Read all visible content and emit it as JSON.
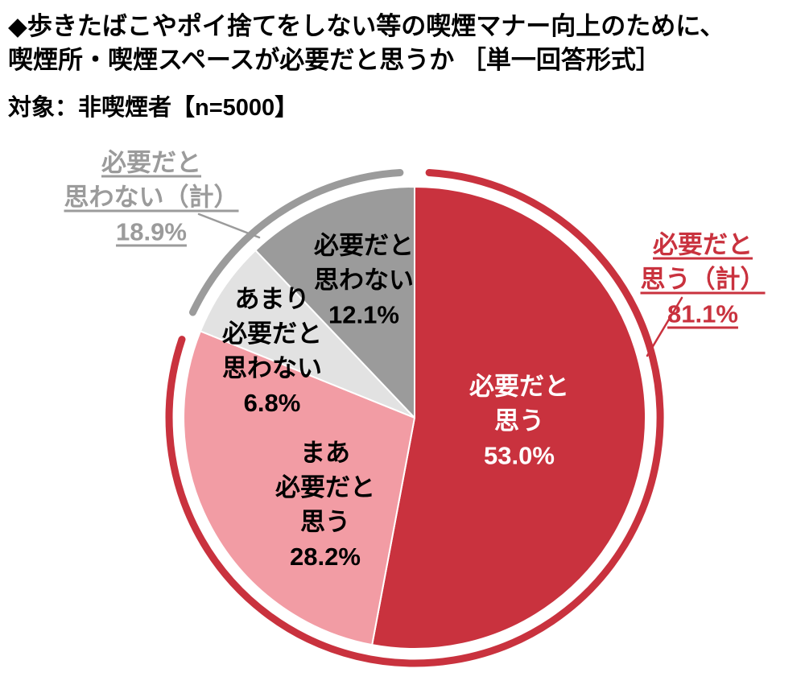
{
  "title": {
    "line1": "◆歩きたばこやポイ捨てをしない等の喫煙マナー向上のために、",
    "line2": "喫煙所・喫煙スペースが必要だと思うか ［単一回答形式］"
  },
  "subject": "対象：非喫煙者【n=5000】",
  "chart_data": {
    "type": "pie",
    "title": "歩きたばこやポイ捨てをしない等の喫煙マナー向上のために、喫煙所・喫煙スペースが必要だと思うか",
    "question_format": "単一回答形式",
    "target": "非喫煙者",
    "n": 5000,
    "unit": "%",
    "start_angle_deg": 0,
    "direction": "clockwise",
    "legend": "none",
    "slices": [
      {
        "label": "必要だと思う",
        "value": 53.0,
        "display": "53.0%",
        "color": "#C9323E",
        "label_color": "#FFFFFF",
        "label_lines": [
          "必要だと",
          "思う",
          "53.0%"
        ]
      },
      {
        "label": "まあ必要だと思う",
        "value": 28.2,
        "display": "28.2%",
        "color": "#F29CA4",
        "label_color": "#000000",
        "label_lines": [
          "まあ",
          "必要だと",
          "思う",
          "28.2%"
        ]
      },
      {
        "label": "あまり必要だと思わない",
        "value": 6.8,
        "display": "6.8%",
        "color": "#E2E2E2",
        "label_color": "#000000",
        "label_lines": [
          "あまり",
          "必要だと",
          "思わない",
          "6.8%"
        ]
      },
      {
        "label": "必要だと思わない",
        "value": 12.1,
        "display": "12.1%",
        "color": "#9B9B9B",
        "label_color": "#000000",
        "label_lines": [
          "必要だと",
          "思わない",
          "12.1%"
        ]
      }
    ],
    "summaries": [
      {
        "label": "必要だと思う（計）",
        "value": 81.1,
        "display": "81.1%",
        "color": "#C9323E",
        "label_lines": [
          "必要だと",
          "思う（計）",
          "81.1%"
        ],
        "covers_slices": [
          0,
          1
        ]
      },
      {
        "label": "必要だと思わない（計）",
        "value": 18.9,
        "display": "18.9%",
        "color": "#9B9B9B",
        "label_lines": [
          "必要だと",
          "思わない（計）",
          "18.9%"
        ],
        "covers_slices": [
          2,
          3
        ]
      }
    ]
  }
}
